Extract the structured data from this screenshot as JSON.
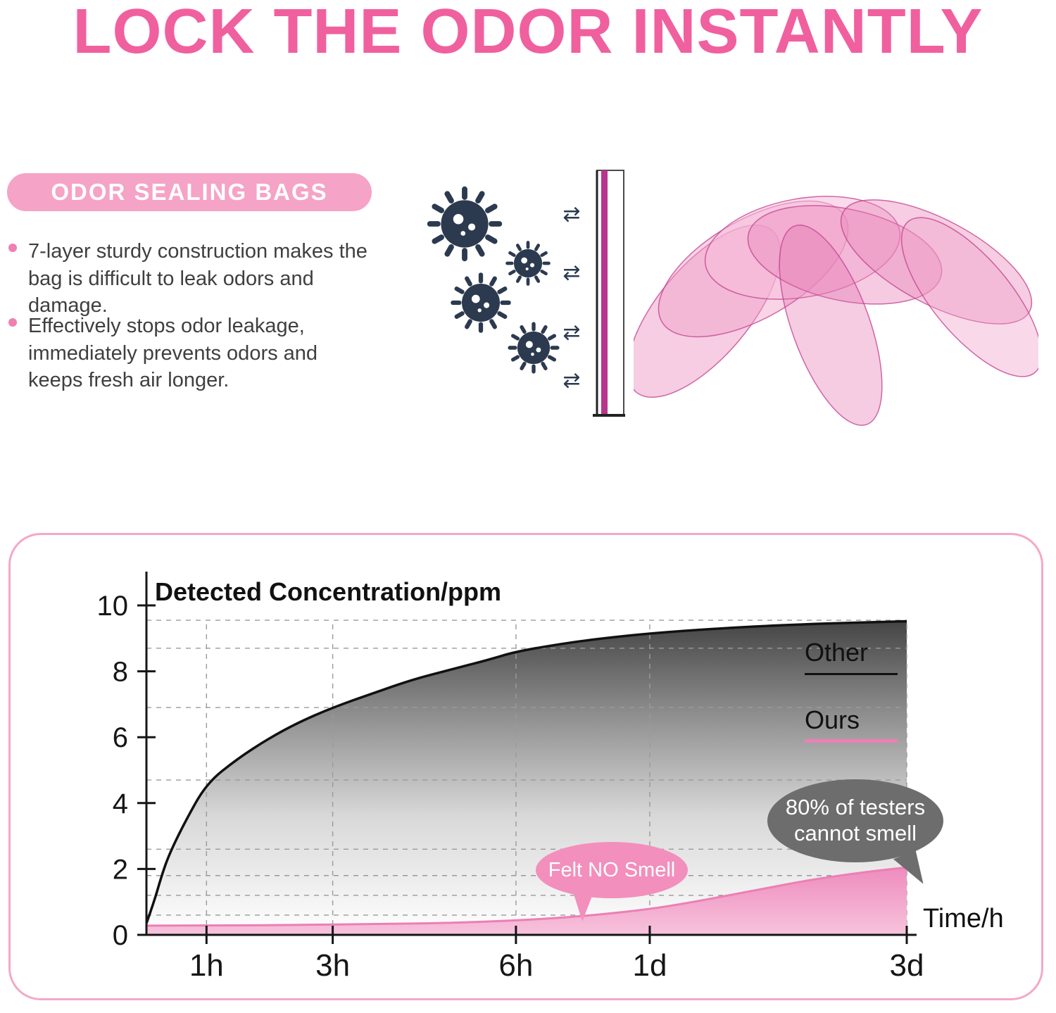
{
  "title": "LOCK THE ODOR INSTANTLY",
  "feature": {
    "badge": "ODOR SEALING BAGS",
    "bullets": [
      "7-layer sturdy construction makes the bag is difficult to leak odors and damage.",
      "Effectively stops odor leakage, immediately prevents odors and keeps fresh air longer."
    ]
  },
  "icons": {
    "airflow_arrow": "⇄"
  },
  "colors": {
    "accent_pink": "#f0609e",
    "badge_pink": "#f5a3c7",
    "bullet_ring_pink": "#f07fb2",
    "body_text": "#3f3f3f",
    "germ_navy": "#2c3a4f",
    "barrier_stripe_magenta": "#b8358e",
    "chart_border_pink": "#f5a8c8",
    "bubble_pink": "#f38fbc",
    "bubble_gray": "#6d6d6d"
  },
  "chart_data": {
    "type": "area",
    "title": "Detected Concentration/ppm",
    "xlabel": "Time/h",
    "ylabel": "Detected Concentration/ppm",
    "ylim": [
      0,
      10
    ],
    "y_ticks": [
      0,
      2,
      4,
      6,
      8,
      10
    ],
    "x_ticks": [
      {
        "label": "1h",
        "pos": 0.079
      },
      {
        "label": "3h",
        "pos": 0.245
      },
      {
        "label": "6h",
        "pos": 0.486
      },
      {
        "label": "1d",
        "pos": 0.662
      },
      {
        "label": "3d",
        "pos": 1.0
      }
    ],
    "grid": "dashed",
    "grid_y": [
      0.6,
      1.2,
      1.8,
      2.6,
      4.7,
      6.9,
      8.7,
      9.55
    ],
    "grid_top": 9.55,
    "legend_position": "right",
    "series": [
      {
        "name": "Other",
        "color": "#111111",
        "fill": "gray-gradient",
        "points": [
          [
            0,
            0.35
          ],
          [
            0.01,
            1.0
          ],
          [
            0.02,
            1.8
          ],
          [
            0.03,
            2.45
          ],
          [
            0.05,
            3.4
          ],
          [
            0.079,
            4.6
          ],
          [
            0.12,
            5.35
          ],
          [
            0.16,
            5.95
          ],
          [
            0.2,
            6.45
          ],
          [
            0.245,
            6.9
          ],
          [
            0.3,
            7.35
          ],
          [
            0.35,
            7.75
          ],
          [
            0.4,
            8.05
          ],
          [
            0.45,
            8.35
          ],
          [
            0.486,
            8.6
          ],
          [
            0.55,
            8.85
          ],
          [
            0.6,
            9.0
          ],
          [
            0.662,
            9.15
          ],
          [
            0.75,
            9.3
          ],
          [
            0.85,
            9.42
          ],
          [
            1.0,
            9.52
          ]
        ]
      },
      {
        "name": "Ours",
        "color": "#ec7fb4",
        "fill": "pink-gradient",
        "points": [
          [
            0,
            0.28
          ],
          [
            0.1,
            0.28
          ],
          [
            0.2,
            0.3
          ],
          [
            0.3,
            0.33
          ],
          [
            0.4,
            0.36
          ],
          [
            0.5,
            0.45
          ],
          [
            0.58,
            0.58
          ],
          [
            0.662,
            0.78
          ],
          [
            0.72,
            1.0
          ],
          [
            0.8,
            1.35
          ],
          [
            0.88,
            1.7
          ],
          [
            0.95,
            1.92
          ],
          [
            1.0,
            2.05
          ]
        ]
      }
    ],
    "annotations": [
      {
        "id": "felt-no-smell",
        "lines": [
          "Felt NO Smell"
        ],
        "color": "#f38fbc"
      },
      {
        "id": "testers-cannot-smell",
        "lines": [
          "80% of testers",
          "cannot smell"
        ],
        "color": "#6d6d6d"
      }
    ]
  }
}
